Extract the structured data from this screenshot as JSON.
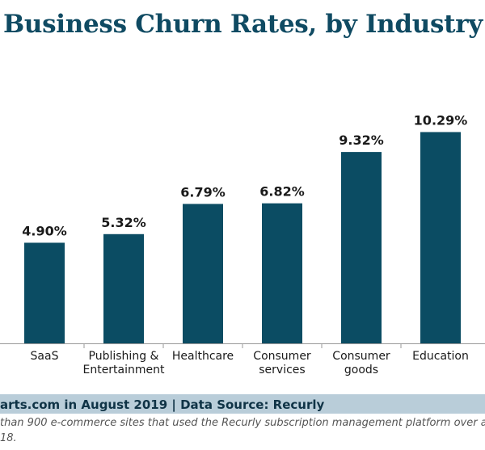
{
  "chart_data": {
    "type": "bar",
    "title": "Business Churn Rates, by Industry",
    "categories": [
      [
        "SaaS"
      ],
      [
        "Publishing &",
        "Entertainment"
      ],
      [
        "Healthcare"
      ],
      [
        "Consumer",
        "services"
      ],
      [
        "Consumer",
        "goods"
      ],
      [
        "Education"
      ]
    ],
    "values": [
      4.9,
      5.32,
      6.79,
      6.82,
      9.32,
      10.29
    ],
    "value_labels": [
      "4.90%",
      "5.32%",
      "6.79%",
      "6.82%",
      "9.32%",
      "10.29%"
    ],
    "ylim": [
      0,
      12
    ],
    "grid": false,
    "bar_color": "#0b4c63"
  },
  "footer": {
    "source": "arts.com in August 2019 | Data Source: Recurly",
    "note_line1": "than 900 e-commerce sites that used the Recurly subscription management platform over a",
    "note_line2": "18."
  },
  "colors": {
    "title": "#0f4a62",
    "bar": "#0b4c63",
    "source_band": "#b9cdd9"
  }
}
